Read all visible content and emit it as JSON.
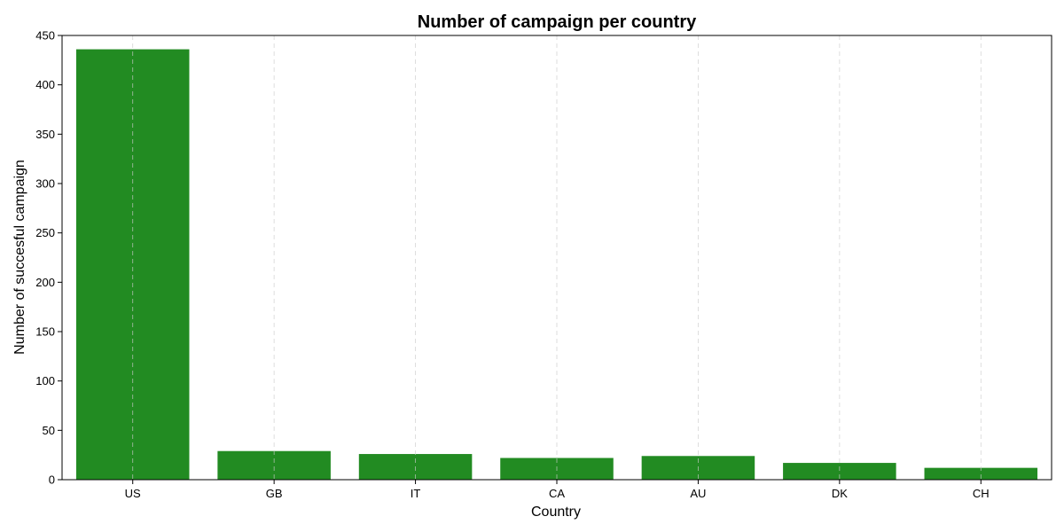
{
  "chart_data": {
    "type": "bar",
    "title": "Number of campaign per country",
    "xlabel": "Country",
    "ylabel": "Number of succesful campaign",
    "categories": [
      "US",
      "GB",
      "IT",
      "CA",
      "AU",
      "DK",
      "CH"
    ],
    "values": [
      436,
      29,
      26,
      22,
      24,
      17,
      12
    ],
    "ylim": [
      0,
      450
    ],
    "yticks": [
      0,
      50,
      100,
      150,
      200,
      250,
      300,
      350,
      400,
      450
    ],
    "bar_color": "#228b22",
    "grid": "vertical dashed",
    "legend": "none"
  }
}
